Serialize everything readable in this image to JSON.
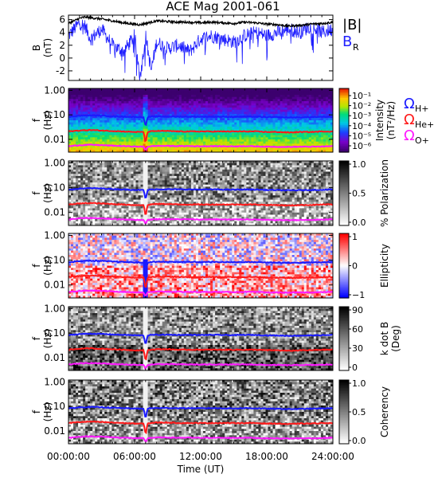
{
  "title": "ACE Mag 2001-061",
  "colors": {
    "B_total": "#000000",
    "B_R": "#1f1fff",
    "H_plus": "#1a1aff",
    "He_plus": "#ff1a1a",
    "O_plus": "#ff19ff"
  },
  "legend": {
    "top": [
      {
        "label": "|B|",
        "color": "#000000"
      },
      {
        "label": "B",
        "sub": "R",
        "color": "#1f1fff"
      }
    ],
    "gyro": [
      {
        "label": "Ω",
        "sub": "H+",
        "color": "#1a1aff"
      },
      {
        "label": "Ω",
        "sub": "He+",
        "color": "#ff1a1a"
      },
      {
        "label": "Ω",
        "sub": "O+",
        "color": "#ff19ff"
      }
    ]
  },
  "chart_data": [
    {
      "type": "line",
      "panel": "field",
      "ylabel": "B",
      "yunit": "(nT)",
      "ylim": [
        -3.5,
        6.7
      ],
      "yticks": [
        "-2",
        "0",
        "2",
        "4",
        "6"
      ],
      "ytick_values": [
        -2,
        0,
        2,
        4,
        6
      ],
      "xlim": [
        0,
        24
      ],
      "x": [
        0,
        1,
        1.5,
        2,
        3,
        4,
        5,
        6,
        6.5,
        7,
        7.5,
        8,
        9,
        10,
        11,
        12,
        13,
        14,
        15,
        16,
        17,
        18,
        19,
        20,
        21,
        22,
        23,
        24
      ],
      "series": [
        {
          "name": "|B|",
          "values": [
            5.4,
            6.2,
            6.4,
            6.3,
            6.1,
            5.8,
            5.5,
            5.3,
            5.2,
            5.4,
            5.6,
            5.8,
            5.7,
            5.6,
            5.6,
            5.5,
            5.6,
            5.5,
            5.4,
            5.6,
            5.5,
            5.3,
            5.2,
            5.0,
            5.1,
            5.3,
            5.4,
            5.6
          ]
        },
        {
          "name": "B_R",
          "values": [
            3.5,
            5.5,
            5.0,
            3.0,
            4.5,
            2.0,
            1.0,
            3.5,
            -3.0,
            3.5,
            -2.0,
            2.5,
            1.5,
            2.0,
            1.0,
            3.0,
            3.5,
            3.0,
            2.5,
            3.5,
            4.0,
            3.5,
            4.0,
            4.5,
            4.0,
            5.0,
            4.0,
            4.5
          ]
        }
      ]
    },
    {
      "type": "heatmap",
      "panel": "intensity",
      "ylabel": "f",
      "yunit": "(Hz)",
      "yscale": "log",
      "ylim": [
        0.003,
        1.2
      ],
      "yticks": [
        "1.00",
        "0.10",
        "0.01"
      ],
      "ytick_values": [
        1.0,
        0.1,
        0.01
      ],
      "colorbar": {
        "label": "Intensity",
        "unit": "(nT²/Hz)",
        "ticks": [
          "10⁻¹",
          "10⁻²",
          "10⁻³",
          "10⁻⁴",
          "10⁻⁵",
          "10⁻⁶"
        ]
      },
      "palette": "rainbow",
      "gyro": true
    },
    {
      "type": "heatmap",
      "panel": "polarization",
      "ylabel": "f",
      "yunit": "(Hz)",
      "yscale": "log",
      "ylim": [
        0.003,
        1.2
      ],
      "yticks": [
        "1.00",
        "0.10",
        "0.01"
      ],
      "ytick_values": [
        1.0,
        0.1,
        0.01
      ],
      "colorbar": {
        "label": "% Polarization",
        "unit": "",
        "ticks": [
          "1.0",
          "0.5",
          "0.0"
        ]
      },
      "palette": "gray",
      "gyro": true
    },
    {
      "type": "heatmap",
      "panel": "ellipticity",
      "ylabel": "f",
      "yunit": "(Hz)",
      "yscale": "log",
      "ylim": [
        0.003,
        1.2
      ],
      "yticks": [
        "1.00",
        "0.10",
        "0.01"
      ],
      "ytick_values": [
        1.0,
        0.1,
        0.01
      ],
      "colorbar": {
        "label": "Ellipticity",
        "unit": "",
        "ticks": [
          "1",
          "0",
          "−1"
        ]
      },
      "palette": "bwr",
      "gyro": true
    },
    {
      "type": "heatmap",
      "panel": "kdotb",
      "ylabel": "f",
      "yunit": "(Hz)",
      "yscale": "log",
      "ylim": [
        0.003,
        1.2
      ],
      "yticks": [
        "1.00",
        "0.10",
        "0.01"
      ],
      "ytick_values": [
        1.0,
        0.1,
        0.01
      ],
      "colorbar": {
        "label": "k dot B",
        "unit": "(Deg)",
        "ticks": [
          "90",
          "60",
          "30",
          "0"
        ]
      },
      "palette": "gray",
      "gyro": true
    },
    {
      "type": "heatmap",
      "panel": "coherency",
      "ylabel": "f",
      "yunit": "(Hz)",
      "yscale": "log",
      "ylim": [
        0.003,
        1.2
      ],
      "yticks": [
        "1.00",
        "0.10",
        "0.01"
      ],
      "ytick_values": [
        1.0,
        0.1,
        0.01
      ],
      "colorbar": {
        "label": "Coherency",
        "unit": "",
        "ticks": [
          "1.0",
          "0.5",
          "0.0"
        ]
      },
      "palette": "gray",
      "gyro": true
    }
  ],
  "gyrofrequency": {
    "x": [
      0,
      1,
      2,
      3,
      4,
      5,
      6,
      6.8,
      7.0,
      7.2,
      7.4,
      8,
      9,
      10,
      11,
      12,
      13,
      14,
      15,
      16,
      17,
      18,
      19,
      20,
      21,
      22,
      23,
      24
    ],
    "H_plus": [
      0.082,
      0.092,
      0.095,
      0.093,
      0.088,
      0.085,
      0.082,
      0.08,
      0.03,
      0.08,
      0.084,
      0.086,
      0.086,
      0.085,
      0.085,
      0.084,
      0.085,
      0.084,
      0.083,
      0.085,
      0.084,
      0.081,
      0.08,
      0.078,
      0.079,
      0.081,
      0.082,
      0.085
    ],
    "He_plus": [
      0.021,
      0.023,
      0.024,
      0.023,
      0.022,
      0.021,
      0.02,
      0.02,
      0.006,
      0.02,
      0.021,
      0.022,
      0.022,
      0.021,
      0.021,
      0.021,
      0.021,
      0.021,
      0.021,
      0.021,
      0.021,
      0.02,
      0.02,
      0.019,
      0.02,
      0.02,
      0.021,
      0.021
    ],
    "O_plus": [
      0.0052,
      0.0058,
      0.006,
      0.0058,
      0.0055,
      0.0053,
      0.0051,
      0.005,
      0.0035,
      0.005,
      0.0052,
      0.0054,
      0.0054,
      0.0053,
      0.0053,
      0.0052,
      0.0053,
      0.0052,
      0.0052,
      0.0053,
      0.0052,
      0.005,
      0.005,
      0.0049,
      0.005,
      0.005,
      0.0051,
      0.0053
    ]
  },
  "xaxis": {
    "ticks": [
      "00:00:00",
      "06:00:00",
      "12:00:00",
      "18:00:00",
      "24:00:00"
    ],
    "tick_values": [
      0,
      6,
      12,
      18,
      24
    ],
    "label": "Time (UT)"
  }
}
